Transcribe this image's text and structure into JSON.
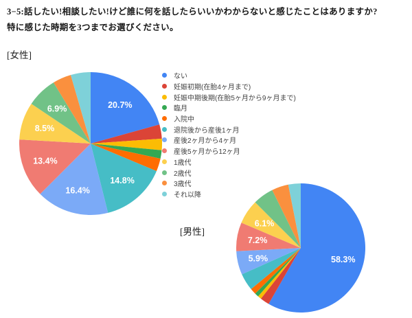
{
  "header": {
    "title_line1": "3−5:話したい!相談したい!けど誰に何を話したらいいかわからないと感じたことはありますか?",
    "title_line2": "特に感じた時期を3つまでお選びください。"
  },
  "sections": {
    "female_label": "[女性]",
    "male_label": "[男性]"
  },
  "legend": {
    "items": [
      {
        "label": "ない",
        "color": "#4285F4"
      },
      {
        "label": "妊娠初期(在胎4ヶ月まで)",
        "color": "#DB4437"
      },
      {
        "label": "妊娠中期後期(在胎5ヶ月から9ヶ月まで)",
        "color": "#FBBC04"
      },
      {
        "label": "臨月",
        "color": "#34A853"
      },
      {
        "label": "入院中",
        "color": "#FF6D01"
      },
      {
        "label": "退院後から産後1ヶ月",
        "color": "#46BDC6"
      },
      {
        "label": "産後2ヶ月から4ヶ月",
        "color": "#7BAAF7"
      },
      {
        "label": "産後5ヶ月から12ヶ月",
        "color": "#F07B72"
      },
      {
        "label": "1歳代",
        "color": "#FCD04F"
      },
      {
        "label": "2歳代",
        "color": "#71C287"
      },
      {
        "label": "3歳代",
        "color": "#FA903E"
      },
      {
        "label": "それ以降",
        "color": "#7ED1D9"
      }
    ]
  },
  "chart_data": [
    {
      "type": "pie",
      "title": "[女性]",
      "categories": [
        "ない",
        "妊娠初期(在胎4ヶ月まで)",
        "妊娠中期後期(在胎5ヶ月から9ヶ月まで)",
        "臨月",
        "入院中",
        "退院後から産後1ヶ月",
        "産後2ヶ月から4ヶ月",
        "産後5ヶ月から12ヶ月",
        "1歳代",
        "2歳代",
        "3歳代",
        "それ以降"
      ],
      "values": [
        20.7,
        3.2,
        2.6,
        1.9,
        2.9,
        14.8,
        16.4,
        13.4,
        8.5,
        6.9,
        4.2,
        4.5
      ],
      "slice_labels": [
        "20.7%",
        "",
        "",
        "",
        "",
        "14.8%",
        "16.4%",
        "13.4%",
        "8.5%",
        "6.9%",
        "",
        ""
      ],
      "colors": [
        "#4285F4",
        "#DB4437",
        "#FBBC04",
        "#34A853",
        "#FF6D01",
        "#46BDC6",
        "#7BAAF7",
        "#F07B72",
        "#FCD04F",
        "#71C287",
        "#FA903E",
        "#7ED1D9"
      ],
      "start_angle": 0,
      "direction": "clockwise",
      "legend_position": "right"
    },
    {
      "type": "pie",
      "title": "[男性]",
      "categories": [
        "ない",
        "妊娠初期(在胎4ヶ月まで)",
        "妊娠中期後期(在胎5ヶ月から9ヶ月まで)",
        "臨月",
        "入院中",
        "退院後から産後1ヶ月",
        "産後2ヶ月から4ヶ月",
        "産後5ヶ月から12ヶ月",
        "1歳代",
        "2歳代",
        "3歳代",
        "それ以降"
      ],
      "values": [
        58.3,
        2.3,
        0.9,
        1.0,
        1.5,
        4.3,
        5.9,
        7.2,
        6.1,
        5.2,
        4.2,
        3.1
      ],
      "slice_labels": [
        "58.3%",
        "",
        "",
        "",
        "",
        "",
        "5.9%",
        "7.2%",
        "6.1%",
        "",
        "",
        ""
      ],
      "colors": [
        "#4285F4",
        "#DB4437",
        "#FBBC04",
        "#34A853",
        "#FF6D01",
        "#46BDC6",
        "#7BAAF7",
        "#F07B72",
        "#FCD04F",
        "#71C287",
        "#FA903E",
        "#7ED1D9"
      ],
      "start_angle": 0,
      "direction": "clockwise",
      "legend_position": "shared"
    }
  ]
}
